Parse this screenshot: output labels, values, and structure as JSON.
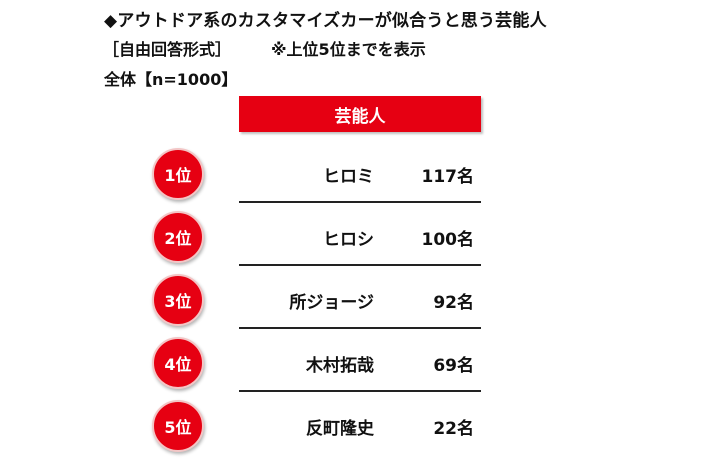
{
  "header": {
    "title": "◆アウトドア系のカスタマイズカーが似合うと思う芸能人",
    "format": "［自由回答形式］",
    "note": "※上位5位までを表示",
    "sample": "全体【n=1000】"
  },
  "chart_data": {
    "type": "table",
    "column_header": "芸能人",
    "categories": [
      "ヒロミ",
      "ヒロシ",
      "所ジョージ",
      "木村拓哉",
      "反町隆史"
    ],
    "ranks": [
      "1位",
      "2位",
      "3位",
      "4位",
      "5位"
    ],
    "values": [
      117,
      100,
      92,
      69,
      22
    ],
    "value_labels": [
      "117名",
      "100名",
      "92名",
      "69名",
      "22名"
    ]
  },
  "colors": {
    "accent": "#e60012",
    "text": "#111111"
  }
}
